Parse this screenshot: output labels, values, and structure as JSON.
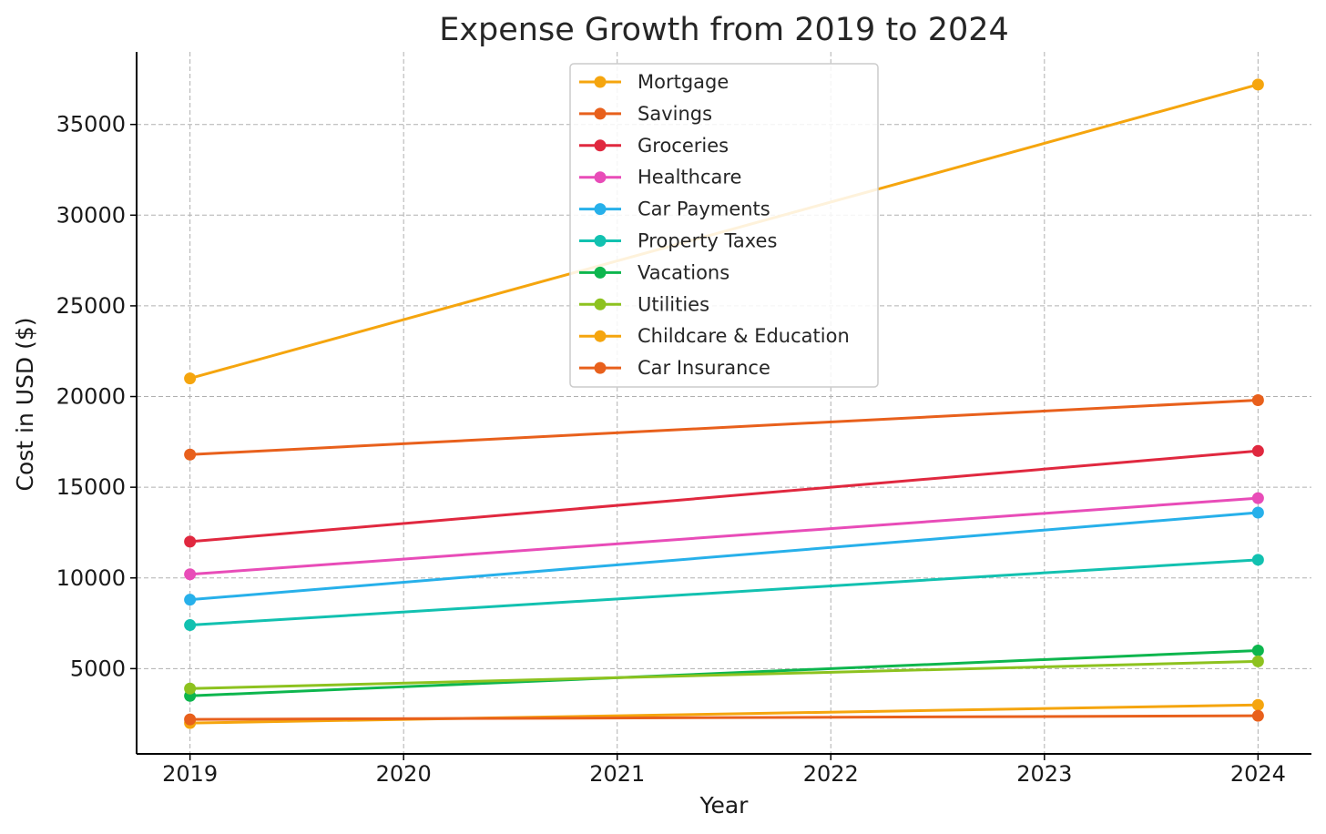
{
  "chart_data": {
    "type": "line",
    "title": "Expense Growth from 2019 to 2024",
    "xlabel": "Year",
    "ylabel": "Cost in USD ($)",
    "x": [
      2019,
      2024
    ],
    "xticks": [
      "2019",
      "2020",
      "2021",
      "2022",
      "2023",
      "2024"
    ],
    "yticks": [
      "5000",
      "10000",
      "15000",
      "20000",
      "25000",
      "30000",
      "35000"
    ],
    "xlim": [
      2018.75,
      2024.25
    ],
    "ylim": [
      300,
      39000
    ],
    "grid": true,
    "legend_position": "top-center",
    "series": [
      {
        "name": "Mortgage",
        "color": "#F5A50E",
        "values": [
          21000,
          37200
        ]
      },
      {
        "name": "Savings",
        "color": "#E8601C",
        "values": [
          16800,
          19800
        ]
      },
      {
        "name": "Groceries",
        "color": "#E0283F",
        "values": [
          12000,
          17000
        ]
      },
      {
        "name": "Healthcare",
        "color": "#E84CB8",
        "values": [
          10200,
          14400
        ]
      },
      {
        "name": "Car Payments",
        "color": "#27B0EA",
        "values": [
          8800,
          13600
        ]
      },
      {
        "name": "Property Taxes",
        "color": "#12C1B0",
        "values": [
          7400,
          11000
        ]
      },
      {
        "name": "Vacations",
        "color": "#0DB64E",
        "values": [
          3500,
          6000
        ]
      },
      {
        "name": "Utilities",
        "color": "#8DC21F",
        "values": [
          3900,
          5400
        ]
      },
      {
        "name": "Childcare & Education",
        "color": "#F5A50E",
        "values": [
          2000,
          3000
        ]
      },
      {
        "name": "Car Insurance",
        "color": "#E8601C",
        "values": [
          2200,
          2400
        ]
      }
    ]
  }
}
